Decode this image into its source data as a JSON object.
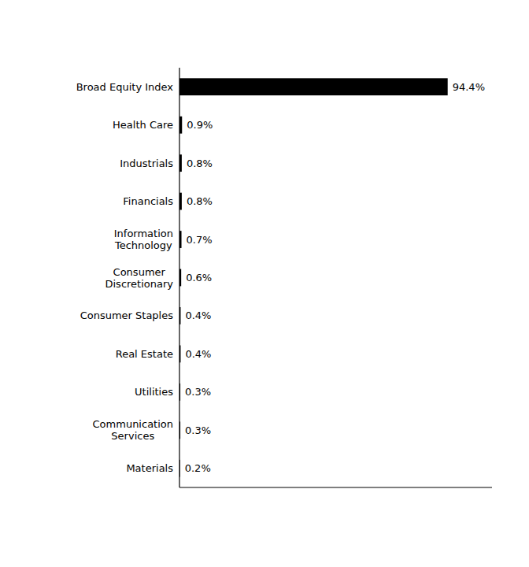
{
  "chart_data": {
    "type": "bar",
    "orientation": "horizontal",
    "categories": [
      "Broad Equity Index",
      "Health Care",
      "Industrials",
      "Financials",
      "Information\nTechnology",
      "Consumer\nDiscretionary",
      "Consumer Staples",
      "Real Estate",
      "Utilities",
      "Communication\nServices",
      "Materials"
    ],
    "values": [
      94.4,
      0.9,
      0.8,
      0.8,
      0.7,
      0.6,
      0.4,
      0.4,
      0.3,
      0.3,
      0.2
    ],
    "value_labels": [
      "94.4%",
      "0.9%",
      "0.8%",
      "0.8%",
      "0.7%",
      "0.6%",
      "0.4%",
      "0.4%",
      "0.3%",
      "0.3%",
      "0.2%"
    ],
    "data_labels": true,
    "color": "#000000",
    "xlim": [
      0,
      110
    ],
    "tick_labels": "y",
    "grid": false
  }
}
